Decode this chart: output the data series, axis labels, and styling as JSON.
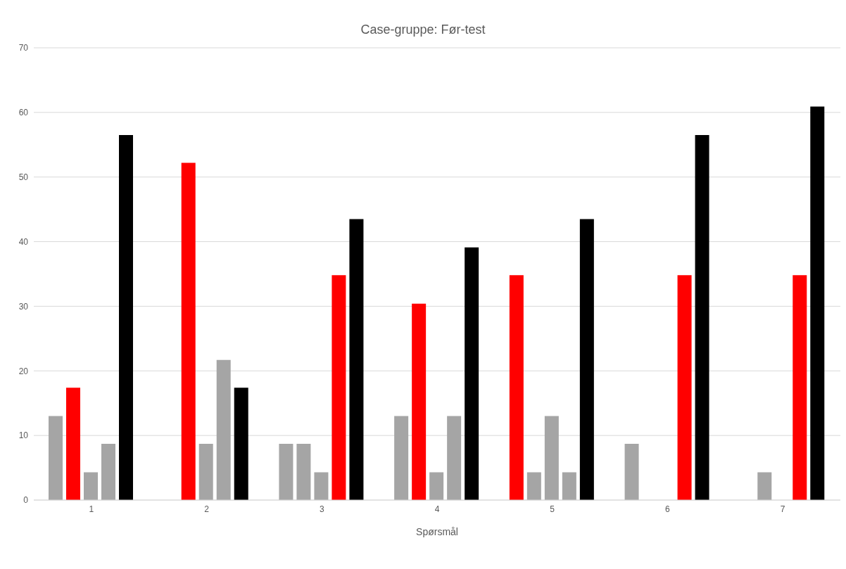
{
  "chart_data": {
    "type": "bar",
    "title": "Case-gruppe: Før-test",
    "xlabel": "Spørsmål",
    "categories": [
      "1",
      "2",
      "3",
      "4",
      "5",
      "6",
      "7"
    ],
    "series": [
      {
        "colors": [
          "#a5a5a5",
          "#ffffff",
          "#a5a5a5",
          "#a5a5a5",
          "#ff0000",
          "#a5a5a5",
          "#ffffff"
        ],
        "values": [
          13,
          0,
          8.7,
          13,
          34.8,
          8.7,
          0
        ]
      },
      {
        "colors": [
          "#ff0000",
          "#ff0000",
          "#a5a5a5",
          "#ff0000",
          "#a5a5a5",
          "#ffffff",
          "#a5a5a5"
        ],
        "values": [
          17.4,
          52.2,
          8.7,
          30.4,
          4.3,
          0,
          4.3
        ]
      },
      {
        "colors": [
          "#a5a5a5",
          "#a5a5a5",
          "#a5a5a5",
          "#a5a5a5",
          "#a5a5a5",
          "#ffffff",
          "#ffffff"
        ],
        "values": [
          4.3,
          8.7,
          4.3,
          4.3,
          13,
          0,
          0
        ]
      },
      {
        "colors": [
          "#a5a5a5",
          "#a5a5a5",
          "#ff0000",
          "#a5a5a5",
          "#a5a5a5",
          "#ff0000",
          "#ff0000"
        ],
        "values": [
          8.7,
          21.7,
          34.8,
          13,
          4.3,
          34.8,
          34.8
        ]
      },
      {
        "colors": [
          "#000000",
          "#000000",
          "#000000",
          "#000000",
          "#000000",
          "#000000",
          "#000000"
        ],
        "values": [
          56.5,
          17.4,
          43.5,
          39.1,
          43.5,
          56.5,
          60.9
        ]
      }
    ],
    "ylim": [
      0,
      70
    ],
    "yticks": [
      0,
      10,
      20,
      30,
      40,
      50,
      60,
      70
    ],
    "grid": "y"
  }
}
